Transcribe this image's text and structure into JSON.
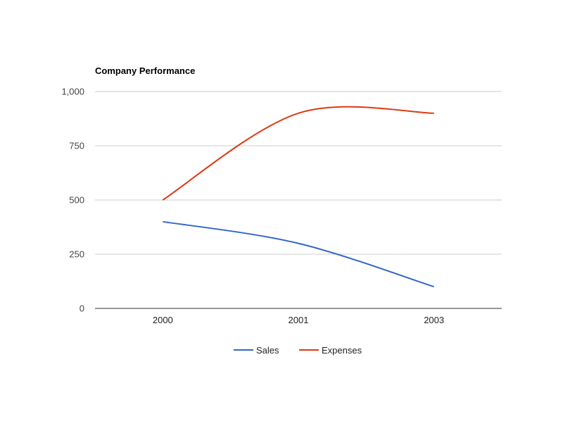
{
  "chart_data": {
    "type": "line",
    "title": "Company Performance",
    "categories": [
      "2000",
      "2001",
      "2003"
    ],
    "series": [
      {
        "name": "Sales",
        "values": [
          400,
          300,
          100
        ],
        "color": "#3366cc"
      },
      {
        "name": "Expenses",
        "values": [
          500,
          900,
          900
        ],
        "color": "#dc3912"
      }
    ],
    "ylim": [
      0,
      1000
    ],
    "yticks": [
      "0",
      "250",
      "500",
      "750",
      "1,000"
    ],
    "ytick_values": [
      0,
      250,
      500,
      750,
      1000
    ],
    "grid": true,
    "smooth": true,
    "legend": "bottom"
  }
}
